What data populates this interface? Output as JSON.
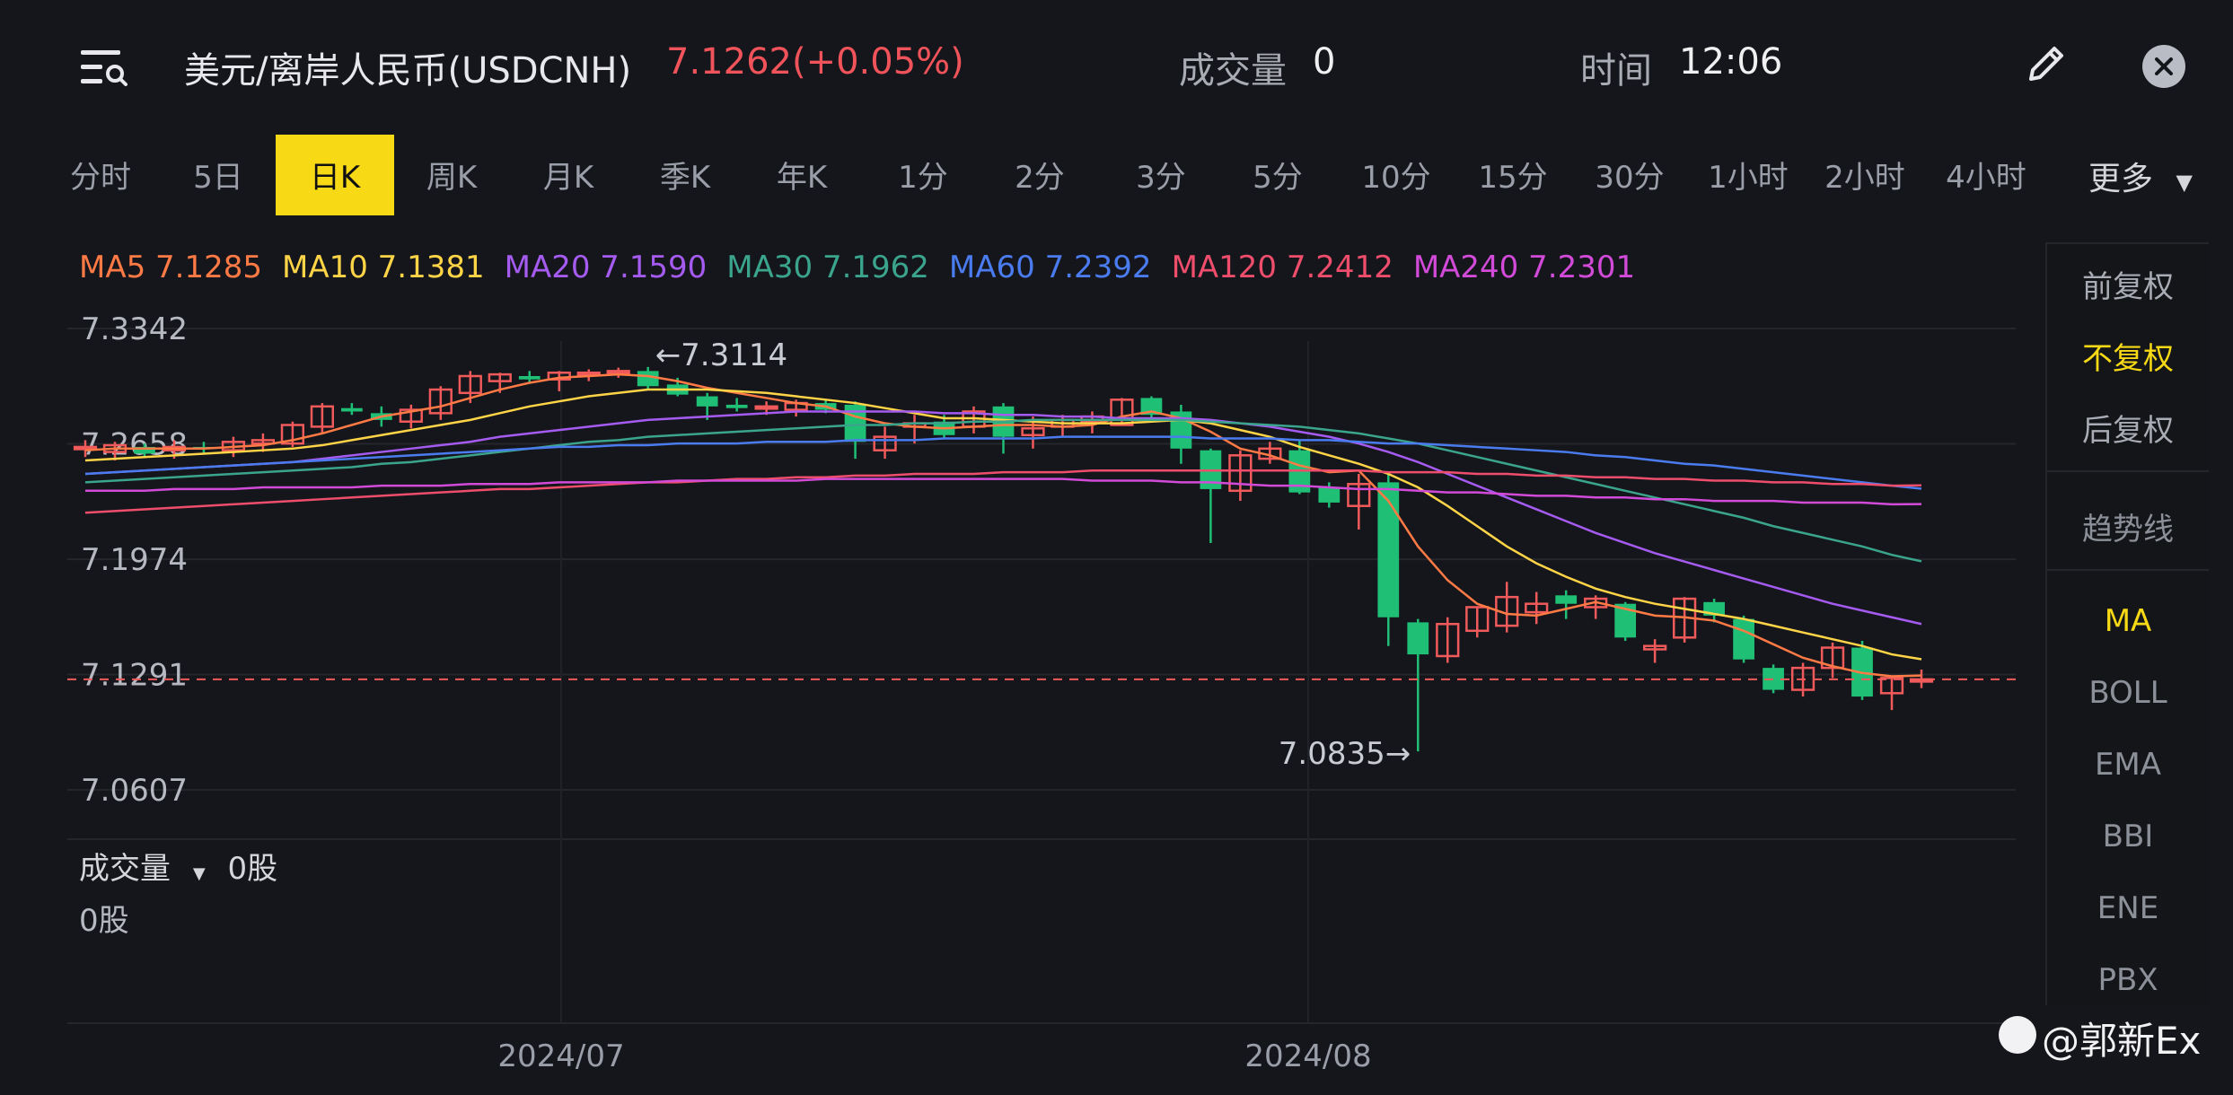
{
  "header": {
    "title": "美元/离岸人民币(USDCNH)",
    "price_change": "7.1262(+0.05%)",
    "volume_label": "成交量",
    "volume_value": "0",
    "time_label": "时间",
    "time_value": "12:06"
  },
  "tabs": [
    {
      "label": "分时"
    },
    {
      "label": "5日"
    },
    {
      "label": "日K"
    },
    {
      "label": "周K"
    },
    {
      "label": "月K"
    },
    {
      "label": "季K"
    },
    {
      "label": "年K"
    },
    {
      "label": "1分"
    },
    {
      "label": "2分"
    },
    {
      "label": "3分"
    },
    {
      "label": "5分"
    },
    {
      "label": "10分"
    },
    {
      "label": "15分"
    },
    {
      "label": "30分"
    },
    {
      "label": "1小时"
    },
    {
      "label": "2小时"
    },
    {
      "label": "4小时"
    }
  ],
  "active_tab": "日K",
  "more_label": "更多",
  "ma_legend": [
    {
      "text": "MA5 7.1285",
      "color": "#ff7a45"
    },
    {
      "text": "MA10 7.1381",
      "color": "#ffd447"
    },
    {
      "text": "MA20 7.1590",
      "color": "#a55bf0"
    },
    {
      "text": "MA30 7.1962",
      "color": "#3aa58c"
    },
    {
      "text": "MA60 7.2392",
      "color": "#4a7cf0"
    },
    {
      "text": "MA120 7.2412",
      "color": "#ee4d6c"
    },
    {
      "text": "MA240 7.2301",
      "color": "#d24ad8"
    }
  ],
  "side_panel": {
    "items": [
      "前复权",
      "不复权",
      "后复权",
      "趋势线",
      "MA",
      "BOLL",
      "EMA",
      "BBI",
      "ENE",
      "PBX"
    ],
    "active": [
      "不复权",
      "MA"
    ]
  },
  "volume": {
    "label": "成交量",
    "value": "0股",
    "axis_value": "0股"
  },
  "watermark": "@郭新Ex",
  "colors": {
    "up": "#f05a5a",
    "down": "#1fbf75",
    "accent": "#f7d916",
    "last_price_line": "#f05a5a"
  },
  "chart_data": {
    "type": "candlestick",
    "y_ticks": [
      "7.3342",
      "7.2658",
      "7.1974",
      "7.1291",
      "7.0607"
    ],
    "ylim": [
      7.0607,
      7.3342
    ],
    "x_ticks": [
      "2024/07",
      "2024/08"
    ],
    "high_marker": "←7.3114",
    "low_marker": "7.0835→",
    "last_price": 7.1262,
    "candles": [
      {
        "o": 7.263,
        "h": 7.268,
        "l": 7.258,
        "c": 7.264
      },
      {
        "o": 7.261,
        "h": 7.267,
        "l": 7.256,
        "c": 7.265
      },
      {
        "o": 7.264,
        "h": 7.266,
        "l": 7.258,
        "c": 7.26
      },
      {
        "o": 7.262,
        "h": 7.268,
        "l": 7.257,
        "c": 7.264
      },
      {
        "o": 7.264,
        "h": 7.267,
        "l": 7.26,
        "c": 7.263
      },
      {
        "o": 7.262,
        "h": 7.27,
        "l": 7.258,
        "c": 7.267
      },
      {
        "o": 7.266,
        "h": 7.272,
        "l": 7.261,
        "c": 7.268
      },
      {
        "o": 7.266,
        "h": 7.279,
        "l": 7.264,
        "c": 7.277
      },
      {
        "o": 7.276,
        "h": 7.29,
        "l": 7.272,
        "c": 7.288
      },
      {
        "o": 7.287,
        "h": 7.29,
        "l": 7.283,
        "c": 7.285
      },
      {
        "o": 7.284,
        "h": 7.288,
        "l": 7.276,
        "c": 7.28
      },
      {
        "o": 7.279,
        "h": 7.289,
        "l": 7.275,
        "c": 7.286
      },
      {
        "o": 7.284,
        "h": 7.3,
        "l": 7.28,
        "c": 7.298
      },
      {
        "o": 7.296,
        "h": 7.309,
        "l": 7.29,
        "c": 7.306
      },
      {
        "o": 7.303,
        "h": 7.308,
        "l": 7.296,
        "c": 7.307
      },
      {
        "o": 7.306,
        "h": 7.309,
        "l": 7.302,
        "c": 7.304
      },
      {
        "o": 7.304,
        "h": 7.309,
        "l": 7.297,
        "c": 7.308
      },
      {
        "o": 7.307,
        "h": 7.31,
        "l": 7.303,
        "c": 7.308
      },
      {
        "o": 7.308,
        "h": 7.311,
        "l": 7.305,
        "c": 7.309
      },
      {
        "o": 7.309,
        "h": 7.3114,
        "l": 7.298,
        "c": 7.3
      },
      {
        "o": 7.301,
        "h": 7.305,
        "l": 7.294,
        "c": 7.295
      },
      {
        "o": 7.294,
        "h": 7.296,
        "l": 7.28,
        "c": 7.288
      },
      {
        "o": 7.289,
        "h": 7.293,
        "l": 7.285,
        "c": 7.287
      },
      {
        "o": 7.287,
        "h": 7.291,
        "l": 7.283,
        "c": 7.288
      },
      {
        "o": 7.286,
        "h": 7.292,
        "l": 7.282,
        "c": 7.29
      },
      {
        "o": 7.29,
        "h": 7.292,
        "l": 7.284,
        "c": 7.286
      },
      {
        "o": 7.289,
        "h": 7.291,
        "l": 7.257,
        "c": 7.267
      },
      {
        "o": 7.262,
        "h": 7.276,
        "l": 7.257,
        "c": 7.27
      },
      {
        "o": 7.276,
        "h": 7.283,
        "l": 7.266,
        "c": 7.278
      },
      {
        "o": 7.279,
        "h": 7.283,
        "l": 7.269,
        "c": 7.271
      },
      {
        "o": 7.276,
        "h": 7.288,
        "l": 7.272,
        "c": 7.285
      },
      {
        "o": 7.288,
        "h": 7.29,
        "l": 7.26,
        "c": 7.27
      },
      {
        "o": 7.271,
        "h": 7.282,
        "l": 7.263,
        "c": 7.275
      },
      {
        "o": 7.276,
        "h": 7.283,
        "l": 7.27,
        "c": 7.28
      },
      {
        "o": 7.279,
        "h": 7.285,
        "l": 7.272,
        "c": 7.282
      },
      {
        "o": 7.277,
        "h": 7.293,
        "l": 7.277,
        "c": 7.292
      },
      {
        "o": 7.293,
        "h": 7.294,
        "l": 7.281,
        "c": 7.283
      },
      {
        "o": 7.285,
        "h": 7.289,
        "l": 7.254,
        "c": 7.263
      },
      {
        "o": 7.262,
        "h": 7.263,
        "l": 7.207,
        "c": 7.239
      },
      {
        "o": 7.238,
        "h": 7.262,
        "l": 7.232,
        "c": 7.259
      },
      {
        "o": 7.257,
        "h": 7.267,
        "l": 7.254,
        "c": 7.263
      },
      {
        "o": 7.262,
        "h": 7.268,
        "l": 7.236,
        "c": 7.237
      },
      {
        "o": 7.24,
        "h": 7.243,
        "l": 7.228,
        "c": 7.231
      },
      {
        "o": 7.229,
        "h": 7.248,
        "l": 7.215,
        "c": 7.242
      },
      {
        "o": 7.243,
        "h": 7.249,
        "l": 7.146,
        "c": 7.163
      },
      {
        "o": 7.16,
        "h": 7.162,
        "l": 7.0835,
        "c": 7.141
      },
      {
        "o": 7.14,
        "h": 7.163,
        "l": 7.136,
        "c": 7.159
      },
      {
        "o": 7.155,
        "h": 7.169,
        "l": 7.151,
        "c": 7.169
      },
      {
        "o": 7.158,
        "h": 7.184,
        "l": 7.154,
        "c": 7.175
      },
      {
        "o": 7.166,
        "h": 7.178,
        "l": 7.159,
        "c": 7.171
      },
      {
        "o": 7.176,
        "h": 7.179,
        "l": 7.162,
        "c": 7.171
      },
      {
        "o": 7.169,
        "h": 7.176,
        "l": 7.162,
        "c": 7.174
      },
      {
        "o": 7.171,
        "h": 7.172,
        "l": 7.149,
        "c": 7.151
      },
      {
        "o": 7.144,
        "h": 7.15,
        "l": 7.136,
        "c": 7.146
      },
      {
        "o": 7.151,
        "h": 7.175,
        "l": 7.148,
        "c": 7.174
      },
      {
        "o": 7.172,
        "h": 7.174,
        "l": 7.16,
        "c": 7.164
      },
      {
        "o": 7.162,
        "h": 7.164,
        "l": 7.136,
        "c": 7.138
      },
      {
        "o": 7.133,
        "h": 7.135,
        "l": 7.118,
        "c": 7.12
      },
      {
        "o": 7.12,
        "h": 7.136,
        "l": 7.116,
        "c": 7.133
      },
      {
        "o": 7.133,
        "h": 7.148,
        "l": 7.127,
        "c": 7.145
      },
      {
        "o": 7.145,
        "h": 7.149,
        "l": 7.114,
        "c": 7.116
      },
      {
        "o": 7.118,
        "h": 7.128,
        "l": 7.108,
        "c": 7.127
      },
      {
        "o": 7.126,
        "h": 7.132,
        "l": 7.121,
        "c": 7.1262
      }
    ],
    "ma_lines": [
      {
        "name": "MA5",
        "color": "#ff7a45",
        "values": [
          7.262,
          7.263,
          7.263,
          7.263,
          7.263,
          7.264,
          7.265,
          7.268,
          7.272,
          7.277,
          7.282,
          7.285,
          7.288,
          7.293,
          7.298,
          7.302,
          7.305,
          7.306,
          7.307,
          7.306,
          7.303,
          7.299,
          7.296,
          7.293,
          7.29,
          7.288,
          7.282,
          7.278,
          7.276,
          7.275,
          7.276,
          7.277,
          7.277,
          7.276,
          7.277,
          7.282,
          7.285,
          7.281,
          7.273,
          7.263,
          7.259,
          7.253,
          7.249,
          7.25,
          7.232,
          7.205,
          7.185,
          7.171,
          7.165,
          7.164,
          7.168,
          7.172,
          7.168,
          7.164,
          7.163,
          7.161,
          7.155,
          7.147,
          7.139,
          7.134,
          7.13,
          7.128,
          7.1285
        ]
      },
      {
        "name": "MA10",
        "color": "#ffd447",
        "values": [
          7.256,
          7.257,
          7.258,
          7.259,
          7.26,
          7.261,
          7.262,
          7.263,
          7.265,
          7.268,
          7.271,
          7.274,
          7.277,
          7.28,
          7.284,
          7.288,
          7.291,
          7.294,
          7.296,
          7.298,
          7.298,
          7.298,
          7.297,
          7.296,
          7.294,
          7.292,
          7.29,
          7.287,
          7.284,
          7.281,
          7.281,
          7.28,
          7.279,
          7.278,
          7.278,
          7.278,
          7.279,
          7.28,
          7.278,
          7.274,
          7.27,
          7.264,
          7.259,
          7.254,
          7.248,
          7.24,
          7.229,
          7.217,
          7.205,
          7.195,
          7.187,
          7.18,
          7.175,
          7.171,
          7.168,
          7.165,
          7.162,
          7.158,
          7.154,
          7.15,
          7.146,
          7.141,
          7.1381
        ]
      },
      {
        "name": "MA20",
        "color": "#a55bf0",
        "values": [
          7.248,
          7.249,
          7.25,
          7.251,
          7.252,
          7.253,
          7.254,
          7.255,
          7.257,
          7.259,
          7.261,
          7.263,
          7.265,
          7.267,
          7.27,
          7.272,
          7.274,
          7.276,
          7.278,
          7.28,
          7.281,
          7.282,
          7.283,
          7.284,
          7.285,
          7.285,
          7.285,
          7.285,
          7.285,
          7.284,
          7.284,
          7.283,
          7.283,
          7.282,
          7.282,
          7.281,
          7.281,
          7.281,
          7.28,
          7.278,
          7.276,
          7.273,
          7.27,
          7.266,
          7.261,
          7.255,
          7.248,
          7.241,
          7.234,
          7.227,
          7.22,
          7.213,
          7.207,
          7.201,
          7.196,
          7.191,
          7.186,
          7.181,
          7.176,
          7.171,
          7.167,
          7.163,
          7.159
        ]
      },
      {
        "name": "MA30",
        "color": "#3aa58c",
        "values": [
          7.243,
          7.244,
          7.245,
          7.246,
          7.247,
          7.248,
          7.249,
          7.25,
          7.251,
          7.252,
          7.254,
          7.255,
          7.257,
          7.259,
          7.261,
          7.263,
          7.265,
          7.267,
          7.268,
          7.27,
          7.271,
          7.272,
          7.273,
          7.274,
          7.275,
          7.276,
          7.277,
          7.277,
          7.278,
          7.278,
          7.279,
          7.279,
          7.28,
          7.28,
          7.28,
          7.28,
          7.28,
          7.28,
          7.279,
          7.278,
          7.277,
          7.276,
          7.274,
          7.272,
          7.269,
          7.266,
          7.262,
          7.258,
          7.254,
          7.25,
          7.246,
          7.242,
          7.238,
          7.234,
          7.23,
          7.226,
          7.222,
          7.217,
          7.213,
          7.209,
          7.205,
          7.2,
          7.1962
        ]
      },
      {
        "name": "MA60",
        "color": "#4a7cf0",
        "values": [
          7.248,
          7.249,
          7.25,
          7.251,
          7.252,
          7.253,
          7.254,
          7.255,
          7.256,
          7.257,
          7.258,
          7.259,
          7.26,
          7.261,
          7.262,
          7.263,
          7.264,
          7.264,
          7.265,
          7.265,
          7.266,
          7.266,
          7.266,
          7.267,
          7.267,
          7.267,
          7.268,
          7.268,
          7.268,
          7.269,
          7.269,
          7.269,
          7.269,
          7.27,
          7.27,
          7.27,
          7.27,
          7.27,
          7.269,
          7.269,
          7.269,
          7.268,
          7.268,
          7.267,
          7.266,
          7.266,
          7.265,
          7.264,
          7.263,
          7.262,
          7.261,
          7.259,
          7.258,
          7.256,
          7.254,
          7.253,
          7.251,
          7.249,
          7.247,
          7.245,
          7.243,
          7.241,
          7.2392
        ]
      },
      {
        "name": "MA120",
        "color": "#ee4d6c",
        "values": [
          7.225,
          7.226,
          7.227,
          7.228,
          7.229,
          7.23,
          7.231,
          7.232,
          7.233,
          7.234,
          7.235,
          7.236,
          7.237,
          7.238,
          7.239,
          7.239,
          7.24,
          7.241,
          7.242,
          7.243,
          7.243,
          7.244,
          7.245,
          7.245,
          7.246,
          7.246,
          7.247,
          7.247,
          7.248,
          7.248,
          7.248,
          7.249,
          7.249,
          7.249,
          7.25,
          7.25,
          7.25,
          7.25,
          7.25,
          7.25,
          7.25,
          7.25,
          7.25,
          7.25,
          7.249,
          7.249,
          7.249,
          7.248,
          7.248,
          7.247,
          7.247,
          7.246,
          7.246,
          7.245,
          7.245,
          7.244,
          7.244,
          7.243,
          7.243,
          7.242,
          7.242,
          7.241,
          7.2412
        ]
      },
      {
        "name": "MA240",
        "color": "#d24ad8",
        "values": [
          7.238,
          7.238,
          7.238,
          7.239,
          7.239,
          7.239,
          7.24,
          7.24,
          7.24,
          7.24,
          7.241,
          7.241,
          7.241,
          7.242,
          7.242,
          7.242,
          7.243,
          7.243,
          7.243,
          7.243,
          7.244,
          7.244,
          7.244,
          7.244,
          7.244,
          7.245,
          7.245,
          7.245,
          7.245,
          7.245,
          7.245,
          7.245,
          7.245,
          7.245,
          7.244,
          7.244,
          7.244,
          7.243,
          7.243,
          7.242,
          7.241,
          7.241,
          7.24,
          7.239,
          7.239,
          7.238,
          7.237,
          7.237,
          7.236,
          7.235,
          7.235,
          7.234,
          7.234,
          7.233,
          7.233,
          7.232,
          7.232,
          7.232,
          7.231,
          7.231,
          7.231,
          7.23,
          7.2301
        ]
      }
    ]
  }
}
